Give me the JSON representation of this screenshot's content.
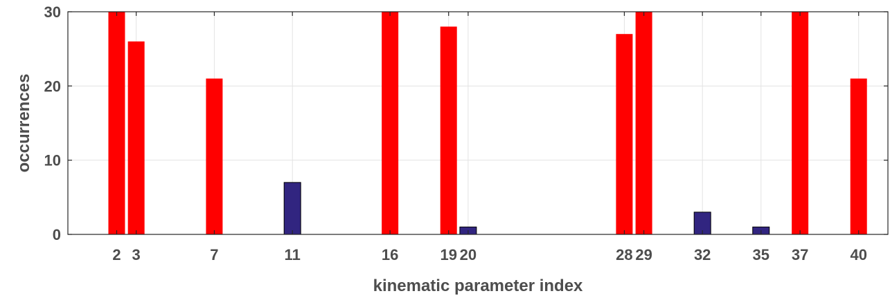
{
  "chart_data": {
    "type": "bar",
    "title": "",
    "xlabel": "kinematic parameter index",
    "ylabel": "occurrences",
    "xlim": [
      -0.5,
      41.5
    ],
    "ylim": [
      0,
      30
    ],
    "grid": true,
    "x_ticks": [
      2,
      3,
      7,
      11,
      16,
      19,
      20,
      28,
      29,
      32,
      35,
      37,
      40
    ],
    "x_tick_labels": [
      "2",
      "3",
      "7",
      "11",
      "16",
      "19",
      "20",
      "28",
      "29",
      "32",
      "35",
      "37",
      "40"
    ],
    "y_ticks": [
      0,
      10,
      20,
      30
    ],
    "y_tick_labels": [
      "0",
      "10",
      "20",
      "30"
    ],
    "bars": [
      {
        "x": 2,
        "value": 30,
        "color": "#ff0000"
      },
      {
        "x": 3,
        "value": 26,
        "color": "#ff0000"
      },
      {
        "x": 7,
        "value": 21,
        "color": "#ff0000"
      },
      {
        "x": 11,
        "value": 7,
        "color": "#312580"
      },
      {
        "x": 16,
        "value": 30,
        "color": "#ff0000"
      },
      {
        "x": 19,
        "value": 28,
        "color": "#ff0000"
      },
      {
        "x": 20,
        "value": 1,
        "color": "#312580"
      },
      {
        "x": 28,
        "value": 27,
        "color": "#ff0000"
      },
      {
        "x": 29,
        "value": 30,
        "color": "#ff0000"
      },
      {
        "x": 32,
        "value": 3,
        "color": "#312580"
      },
      {
        "x": 35,
        "value": 1,
        "color": "#312580"
      },
      {
        "x": 37,
        "value": 30,
        "color": "#ff0000"
      },
      {
        "x": 40,
        "value": 21,
        "color": "#ff0000"
      }
    ]
  }
}
